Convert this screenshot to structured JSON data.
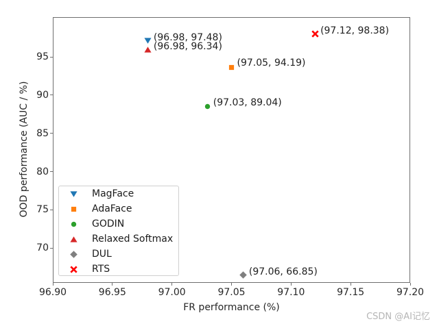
{
  "figure": {
    "background": "#ffffff",
    "watermark": "CSDN @AI记忆"
  },
  "chart_data": {
    "type": "scatter",
    "title": "",
    "xlabel": "FR performance (%)",
    "ylabel": "OOD performance (AUC / %)",
    "xlim": [
      96.9,
      97.2
    ],
    "ylim": [
      65.45,
      100.2
    ],
    "grid": false,
    "legend_position": "lower left",
    "xticks": {
      "values": [
        96.9,
        96.95,
        97.0,
        97.05,
        97.1,
        97.15,
        97.2
      ],
      "labels": [
        "96.90",
        "96.95",
        "97.00",
        "97.05",
        "97.10",
        "97.15",
        "97.20"
      ]
    },
    "yticks": {
      "values": [
        95,
        90,
        85,
        80,
        75,
        70
      ],
      "labels": [
        "95",
        "90",
        "85",
        "80",
        "75",
        "70"
      ]
    },
    "series": [
      {
        "name": "MagFace",
        "marker": "triangle-down",
        "color": "#1f77b4",
        "x": 96.98,
        "y": 97.48,
        "label": "(96.98, 97.48)"
      },
      {
        "name": "AdaFace",
        "marker": "square",
        "color": "#ff7f0e",
        "x": 97.05,
        "y": 94.19,
        "label": "(97.05, 94.19)"
      },
      {
        "name": "GODIN",
        "marker": "circle",
        "color": "#2ca02c",
        "x": 97.03,
        "y": 89.04,
        "label": "(97.03, 89.04)"
      },
      {
        "name": "Relaxed Softmax",
        "marker": "triangle-up",
        "color": "#d62728",
        "x": 96.98,
        "y": 96.34,
        "label": "(96.98, 96.34)"
      },
      {
        "name": "DUL",
        "marker": "diamond",
        "color": "#7f7f7f",
        "x": 97.06,
        "y": 66.85,
        "label": "(97.06, 66.85)"
      },
      {
        "name": "RTS",
        "marker": "x-filled",
        "color": "#ff0000",
        "x": 97.12,
        "y": 98.38,
        "label": "(97.12, 98.38)"
      }
    ]
  }
}
